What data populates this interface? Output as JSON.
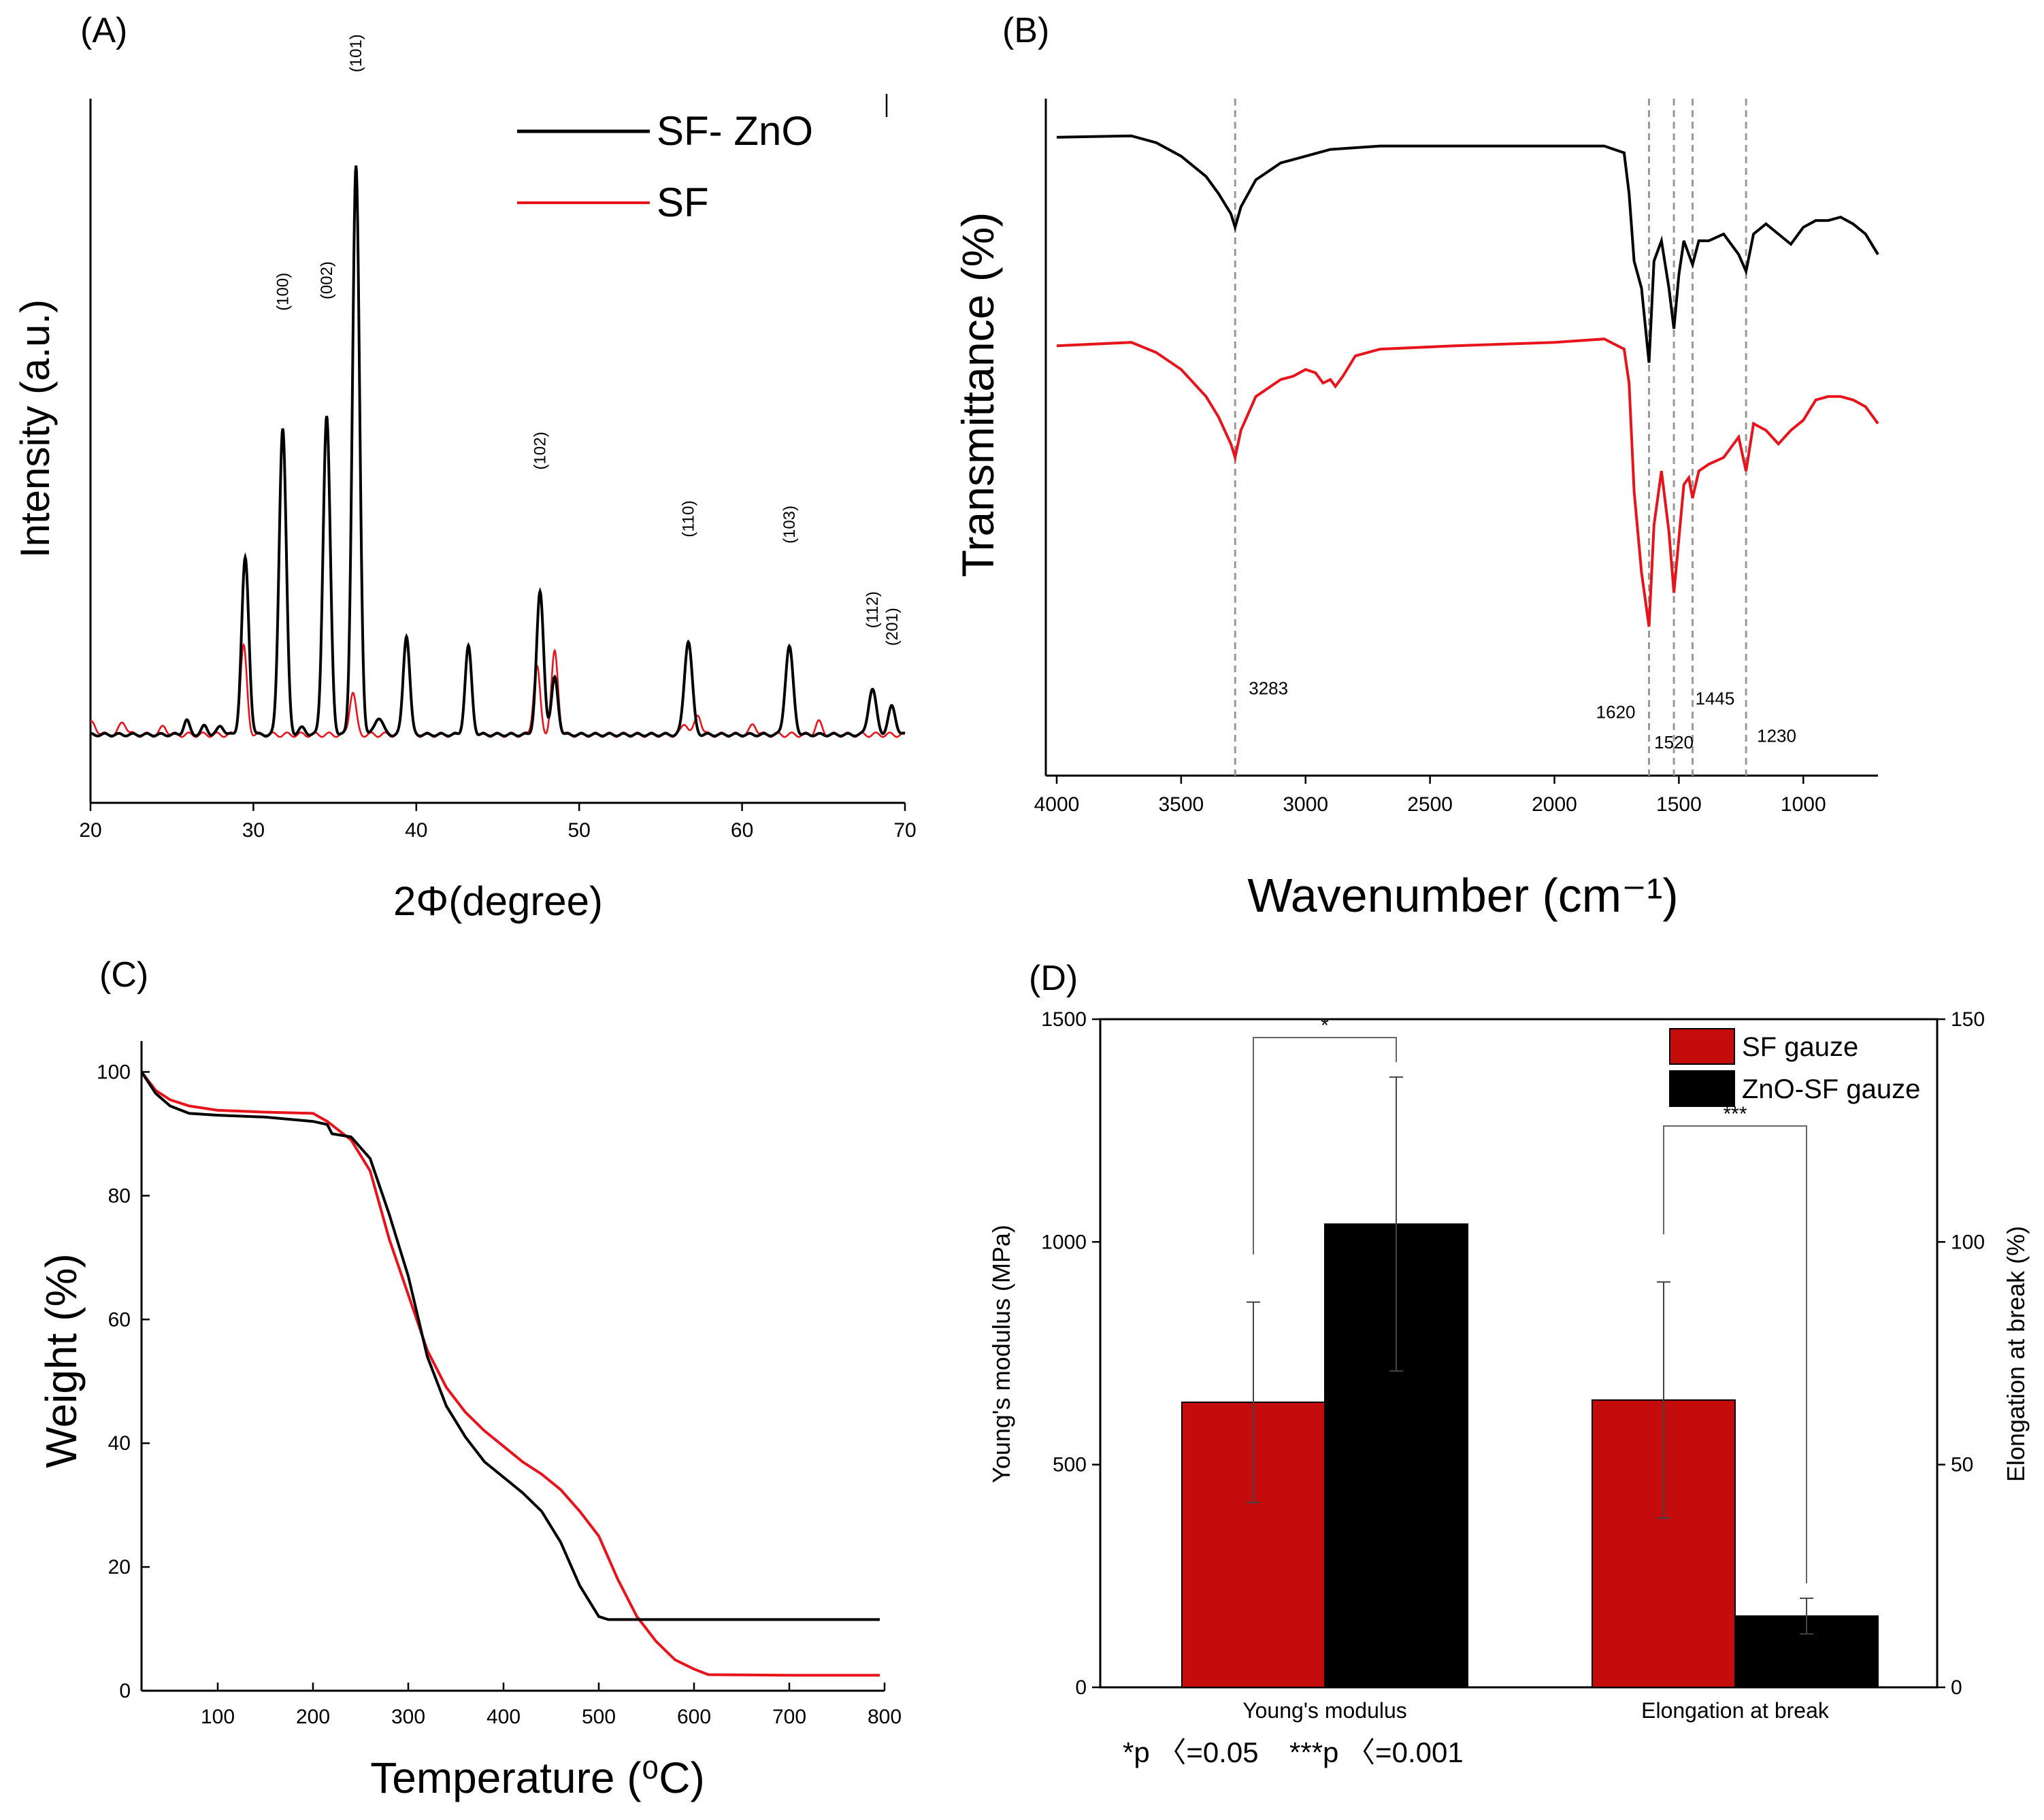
{
  "panels": {
    "A": {
      "letter": "(A)",
      "legend": [
        "SF- ZnO",
        "SF"
      ],
      "peak_labels": [
        "(100)",
        "(002)",
        "(101)",
        "(102)",
        "(110)",
        "(103)",
        "(112)",
        "(201)"
      ]
    },
    "B": {
      "letter": "(B)"
    },
    "C": {
      "letter": "(C)"
    },
    "D": {
      "letter": "(D)",
      "significance_note_1": "*p 〈=0.05",
      "significance_note_2": "***p 〈=0.001",
      "stars_1": "*",
      "stars_2": "***"
    }
  },
  "colors": {
    "sf": "#e8141b",
    "sf_zno": "#000000",
    "bar_sf": "#c40c0c",
    "bar_zno": "#000000"
  },
  "chart_data": [
    {
      "type": "line",
      "panel": "A",
      "title": "",
      "xlabel": "2Φ(degree)",
      "ylabel": "Intensity (a.u.)",
      "xlim": [
        20,
        70
      ],
      "ylim": [
        -0.12,
        1.12
      ],
      "xticks": [
        20,
        30,
        40,
        50,
        60,
        70
      ],
      "legend": "top-right",
      "series": [
        {
          "name": "SF- ZnO",
          "baseline": 0.0,
          "peaks": [
            {
              "x": 25.9,
              "h": 0.025,
              "w": 0.18
            },
            {
              "x": 27.0,
              "h": 0.015,
              "w": 0.18
            },
            {
              "x": 28.0,
              "h": 0.015,
              "w": 0.2
            },
            {
              "x": 29.5,
              "h": 0.31,
              "w": 0.22
            },
            {
              "x": 31.8,
              "h": 0.54,
              "w": 0.22
            },
            {
              "x": 33.0,
              "h": 0.012,
              "w": 0.2
            },
            {
              "x": 34.5,
              "h": 0.56,
              "w": 0.22
            },
            {
              "x": 36.3,
              "h": 1.0,
              "w": 0.22
            },
            {
              "x": 37.7,
              "h": 0.03,
              "w": 0.25
            },
            {
              "x": 39.4,
              "h": 0.175,
              "w": 0.2
            },
            {
              "x": 43.2,
              "h": 0.155,
              "w": 0.2
            },
            {
              "x": 47.6,
              "h": 0.25,
              "w": 0.22
            },
            {
              "x": 48.5,
              "h": 0.1,
              "w": 0.2
            },
            {
              "x": 56.7,
              "h": 0.165,
              "w": 0.24
            },
            {
              "x": 62.9,
              "h": 0.155,
              "w": 0.24
            },
            {
              "x": 68.0,
              "h": 0.08,
              "w": 0.24
            },
            {
              "x": 69.2,
              "h": 0.05,
              "w": 0.22
            }
          ]
        },
        {
          "name": "SF",
          "baseline": 0.0,
          "peaks": [
            {
              "x": 20.1,
              "h": 0.02,
              "w": 0.25
            },
            {
              "x": 22.0,
              "h": 0.022,
              "w": 0.22
            },
            {
              "x": 24.5,
              "h": 0.014,
              "w": 0.2
            },
            {
              "x": 29.4,
              "h": 0.155,
              "w": 0.2
            },
            {
              "x": 36.1,
              "h": 0.075,
              "w": 0.2
            },
            {
              "x": 39.4,
              "h": 0.165,
              "w": 0.2
            },
            {
              "x": 43.2,
              "h": 0.15,
              "w": 0.2
            },
            {
              "x": 47.4,
              "h": 0.12,
              "w": 0.2
            },
            {
              "x": 48.5,
              "h": 0.145,
              "w": 0.2
            },
            {
              "x": 56.5,
              "h": 0.02,
              "w": 0.2
            },
            {
              "x": 57.3,
              "h": 0.035,
              "w": 0.2
            },
            {
              "x": 60.7,
              "h": 0.018,
              "w": 0.2
            },
            {
              "x": 64.7,
              "h": 0.022,
              "w": 0.2
            }
          ]
        }
      ]
    },
    {
      "type": "line",
      "panel": "B",
      "title": "",
      "xlabel": "Wavenumber (cm⁻¹)",
      "ylabel": "Transmittance (%)",
      "xlim": [
        4000,
        700
      ],
      "ylim": [
        0,
        1
      ],
      "xticks": [
        4000,
        3500,
        3000,
        2500,
        2000,
        1500,
        1000
      ],
      "reference_lines": [
        3283,
        1620,
        1520,
        1445,
        1230
      ],
      "peak_labels": [
        "3283",
        "1620",
        "1520",
        "1445",
        "1230"
      ],
      "series": [
        {
          "name": "SF-ZnO",
          "x": [
            4000,
            3700,
            3600,
            3500,
            3400,
            3350,
            3300,
            3283,
            3260,
            3200,
            3100,
            3000,
            2900,
            2700,
            2400,
            2000,
            1800,
            1720,
            1700,
            1680,
            1650,
            1620,
            1600,
            1570,
            1540,
            1520,
            1500,
            1480,
            1460,
            1445,
            1420,
            1380,
            1320,
            1260,
            1230,
            1200,
            1150,
            1100,
            1050,
            1000,
            950,
            900,
            850,
            800,
            750,
            700
          ],
          "y": [
            0.943,
            0.945,
            0.935,
            0.915,
            0.885,
            0.86,
            0.83,
            0.81,
            0.84,
            0.88,
            0.905,
            0.915,
            0.925,
            0.93,
            0.93,
            0.93,
            0.93,
            0.92,
            0.86,
            0.76,
            0.72,
            0.61,
            0.76,
            0.79,
            0.72,
            0.66,
            0.74,
            0.79,
            0.77,
            0.755,
            0.79,
            0.79,
            0.8,
            0.77,
            0.745,
            0.8,
            0.815,
            0.8,
            0.785,
            0.81,
            0.82,
            0.82,
            0.825,
            0.815,
            0.8,
            0.77
          ]
        },
        {
          "name": "SF",
          "x": [
            4000,
            3700,
            3600,
            3500,
            3400,
            3350,
            3300,
            3283,
            3260,
            3200,
            3100,
            3050,
            3000,
            2960,
            2930,
            2900,
            2880,
            2850,
            2800,
            2700,
            2400,
            2000,
            1800,
            1720,
            1700,
            1680,
            1650,
            1620,
            1600,
            1570,
            1540,
            1520,
            1500,
            1480,
            1460,
            1445,
            1420,
            1380,
            1320,
            1260,
            1230,
            1200,
            1150,
            1100,
            1050,
            1000,
            950,
            900,
            850,
            800,
            750,
            700
          ],
          "y": [
            0.635,
            0.64,
            0.625,
            0.6,
            0.56,
            0.53,
            0.49,
            0.47,
            0.51,
            0.56,
            0.585,
            0.59,
            0.6,
            0.595,
            0.58,
            0.585,
            0.575,
            0.59,
            0.62,
            0.63,
            0.635,
            0.64,
            0.645,
            0.63,
            0.58,
            0.42,
            0.3,
            0.22,
            0.37,
            0.45,
            0.36,
            0.27,
            0.35,
            0.43,
            0.44,
            0.41,
            0.45,
            0.46,
            0.47,
            0.5,
            0.45,
            0.52,
            0.51,
            0.49,
            0.51,
            0.525,
            0.555,
            0.56,
            0.56,
            0.555,
            0.545,
            0.52
          ]
        }
      ]
    },
    {
      "type": "line",
      "panel": "C",
      "title": "",
      "xlabel": "Temperature (⁰C)",
      "ylabel": "Weight (%)",
      "xlim": [
        20,
        800
      ],
      "ylim": [
        0,
        105
      ],
      "xticks": [
        100,
        200,
        300,
        400,
        500,
        600,
        700,
        800
      ],
      "yticks": [
        0,
        20,
        40,
        60,
        80,
        100
      ],
      "series": [
        {
          "name": "SF-ZnO",
          "x": [
            20,
            35,
            50,
            70,
            100,
            150,
            200,
            215,
            220,
            240,
            260,
            280,
            300,
            320,
            340,
            360,
            380,
            400,
            420,
            440,
            460,
            480,
            500,
            510,
            550,
            600,
            700,
            795
          ],
          "y": [
            100,
            96.5,
            94.5,
            93.3,
            93,
            92.7,
            92,
            91.5,
            90,
            89.5,
            86,
            77,
            67,
            54,
            46,
            41,
            37,
            34.5,
            32,
            29,
            24,
            17,
            12,
            11.5,
            11.5,
            11.5,
            11.5,
            11.5
          ]
        },
        {
          "name": "SF",
          "x": [
            20,
            35,
            50,
            70,
            100,
            150,
            200,
            215,
            240,
            260,
            280,
            300,
            320,
            340,
            360,
            380,
            400,
            420,
            440,
            460,
            480,
            500,
            520,
            540,
            560,
            580,
            600,
            615,
            700,
            795
          ],
          "y": [
            100,
            97,
            95.5,
            94.5,
            93.8,
            93.5,
            93.3,
            92,
            89,
            84,
            73,
            64,
            55,
            49,
            45,
            42,
            39.5,
            37,
            35,
            32.5,
            29,
            25,
            18,
            12,
            8,
            5,
            3.5,
            2.6,
            2.5,
            2.5
          ]
        }
      ]
    },
    {
      "type": "bar",
      "panel": "D",
      "title": "",
      "categories": [
        "Young's modulus",
        "Elongation at break"
      ],
      "ylabel": "Young's modulus (MPa)",
      "y2label": "Elongation at break (%)",
      "ylim": [
        0,
        1500
      ],
      "y2lim": [
        0,
        150
      ],
      "yticks": [
        0,
        500,
        1000,
        1500
      ],
      "y2ticks": [
        0,
        50,
        100,
        150
      ],
      "legend": "top-right",
      "series": [
        {
          "name": "SF gauze",
          "values": [
            640,
            64.5
          ],
          "errors": [
            225,
            26.5
          ]
        },
        {
          "name": "ZnO-SF gauze",
          "values": [
            1040,
            16
          ],
          "errors": [
            330,
            4
          ]
        }
      ]
    }
  ]
}
